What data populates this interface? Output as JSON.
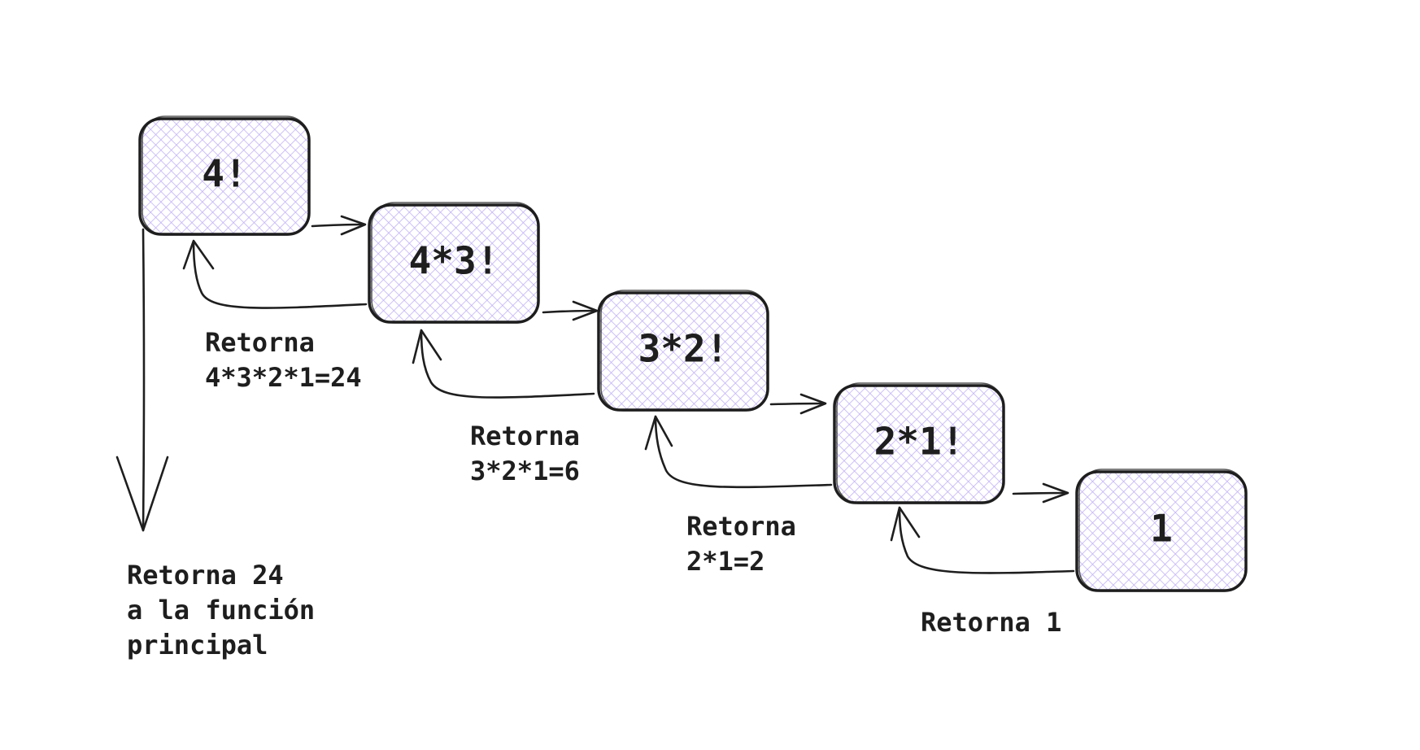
{
  "colors": {
    "stroke": "#1e1e1e",
    "fill": "#d0bfff",
    "background": "#ffffff"
  },
  "nodes": [
    {
      "id": "n1",
      "label": "4!"
    },
    {
      "id": "n2",
      "label": "4*3!"
    },
    {
      "id": "n3",
      "label": "3*2!"
    },
    {
      "id": "n4",
      "label": "2*1!"
    },
    {
      "id": "n5",
      "label": "1"
    }
  ],
  "returns": [
    {
      "lines": [
        "Retorna",
        "4*3*2*1=24"
      ]
    },
    {
      "lines": [
        "Retorna",
        "3*2*1=6"
      ]
    },
    {
      "lines": [
        "Retorna",
        "2*1=2"
      ]
    },
    {
      "lines": [
        "Retorna 1"
      ]
    }
  ],
  "final_return": {
    "lines": [
      "Retorna 24",
      "a la función",
      "principal"
    ]
  }
}
